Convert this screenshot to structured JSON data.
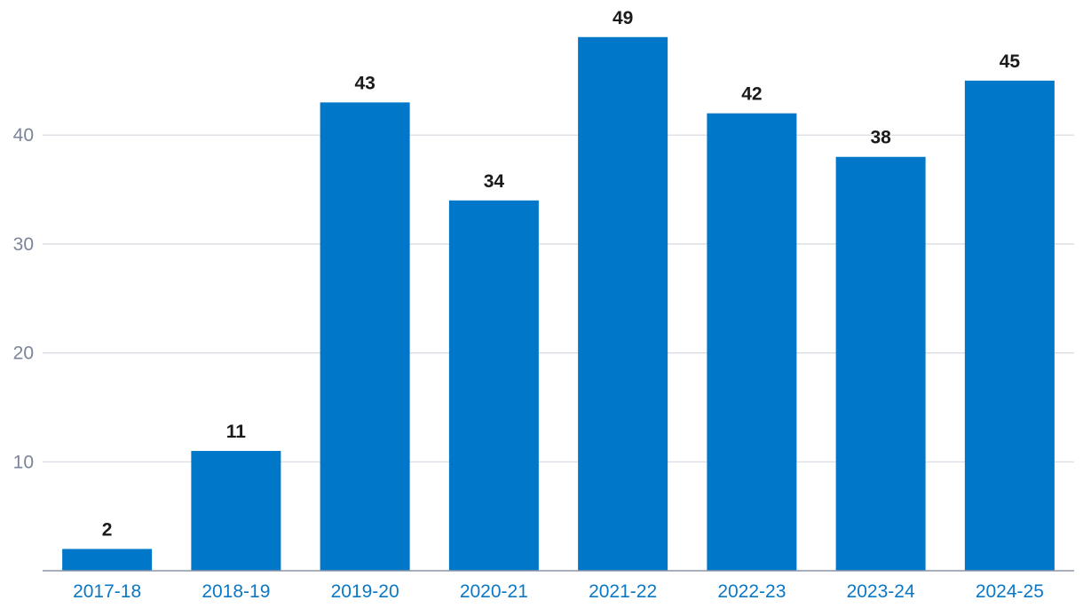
{
  "colors": {
    "bar": "#0077c8",
    "x_tick_text": "#0b78c6",
    "y_tick_text": "#7b8498",
    "gridline": "#d5d9e2",
    "data_label": "#1a1a1a"
  },
  "chart_data": {
    "type": "bar",
    "title": "",
    "xlabel": "",
    "ylabel": "",
    "categories": [
      "2017-18",
      "2018-19",
      "2019-20",
      "2020-21",
      "2021-22",
      "2022-23",
      "2023-24",
      "2024-25"
    ],
    "values": [
      2,
      11,
      43,
      34,
      49,
      42,
      38,
      45
    ],
    "data_labels": [
      "2",
      "11",
      "43",
      "34",
      "49",
      "42",
      "38",
      "45"
    ],
    "ylim": [
      0,
      52.6
    ],
    "yticks": [
      10,
      20,
      30,
      40
    ],
    "ytick_labels": [
      "10",
      "20",
      "30",
      "40"
    ],
    "grid": true,
    "legend": "none"
  }
}
